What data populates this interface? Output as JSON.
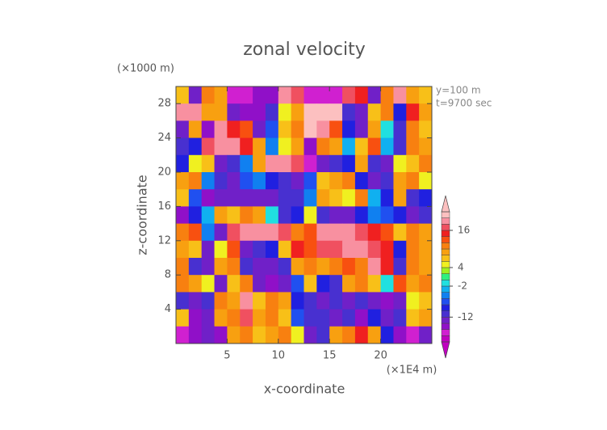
{
  "chart_data": {
    "type": "heatmap",
    "title": "zonal velocity",
    "x_label": "x-coordinate",
    "y_label": "z-coordinate",
    "x_unit": "(×1E4 m)",
    "y_unit": "(×1000 m)",
    "annotations": [
      "y=100 m",
      "t=9700 sec"
    ],
    "xlim": [
      0,
      25
    ],
    "ylim": [
      0,
      30
    ],
    "xticks": [
      5,
      10,
      15,
      20
    ],
    "yticks": [
      4,
      8,
      12,
      16,
      20,
      24,
      28
    ],
    "x": [
      0.625,
      1.875,
      3.125,
      4.375,
      5.625,
      6.875,
      8.125,
      9.375,
      10.625,
      11.875,
      13.125,
      14.375,
      15.625,
      16.875,
      18.125,
      19.375,
      20.625,
      21.875,
      23.125,
      24.375
    ],
    "y": [
      29,
      27,
      25,
      23,
      21,
      19,
      17,
      15,
      13,
      11,
      9,
      7,
      5,
      3,
      1
    ],
    "z": [
      [
        6,
        -14,
        10,
        8,
        -18,
        -18,
        -16,
        -16,
        18,
        16,
        -18,
        -18,
        -18,
        16,
        14,
        -14,
        10,
        18,
        8,
        6
      ],
      [
        18,
        18,
        8,
        8,
        -14,
        -16,
        -16,
        -12,
        4,
        8,
        20,
        20,
        20,
        -12,
        -14,
        6,
        10,
        -10,
        14,
        8
      ],
      [
        -14,
        8,
        -16,
        18,
        14,
        12,
        -14,
        -8,
        6,
        10,
        20,
        18,
        12,
        -10,
        -14,
        8,
        -2,
        -12,
        10,
        6
      ],
      [
        -12,
        -10,
        16,
        18,
        18,
        14,
        8,
        -6,
        4,
        8,
        -16,
        10,
        8,
        -4,
        6,
        12,
        -4,
        -12,
        10,
        8
      ],
      [
        -10,
        4,
        6,
        -14,
        -12,
        -6,
        8,
        18,
        18,
        16,
        -18,
        -14,
        -12,
        -10,
        8,
        -12,
        -14,
        4,
        6,
        10
      ],
      [
        8,
        10,
        -6,
        -12,
        -14,
        -8,
        -6,
        -10,
        -12,
        -14,
        -8,
        6,
        8,
        10,
        -10,
        -14,
        -12,
        8,
        10,
        4
      ],
      [
        6,
        -8,
        -16,
        -14,
        -14,
        -14,
        -14,
        -14,
        -12,
        -12,
        -6,
        8,
        6,
        4,
        10,
        -4,
        -10,
        8,
        -12,
        -10
      ],
      [
        -16,
        -10,
        -4,
        8,
        6,
        10,
        8,
        -2,
        -12,
        -10,
        4,
        -12,
        -14,
        -14,
        -10,
        -6,
        -8,
        -10,
        -14,
        -12
      ],
      [
        10,
        12,
        -6,
        -14,
        16,
        18,
        18,
        18,
        16,
        10,
        12,
        18,
        18,
        18,
        16,
        14,
        12,
        6,
        10,
        8
      ],
      [
        8,
        6,
        -14,
        4,
        12,
        -14,
        -12,
        -10,
        6,
        14,
        12,
        16,
        16,
        18,
        18,
        16,
        14,
        -10,
        10,
        8
      ],
      [
        10,
        -12,
        -14,
        8,
        10,
        -12,
        -14,
        -14,
        -12,
        8,
        10,
        8,
        10,
        12,
        10,
        18,
        14,
        -12,
        10,
        8
      ],
      [
        10,
        8,
        4,
        -14,
        6,
        10,
        -14,
        -16,
        -14,
        -8,
        6,
        -10,
        -12,
        8,
        10,
        6,
        -2,
        12,
        8,
        10
      ],
      [
        -12,
        -14,
        -12,
        10,
        8,
        18,
        6,
        10,
        8,
        -10,
        -12,
        -14,
        -12,
        -14,
        -12,
        -14,
        -16,
        -14,
        4,
        6
      ],
      [
        6,
        -16,
        -14,
        8,
        10,
        16,
        8,
        10,
        6,
        -8,
        -12,
        -12,
        -14,
        -12,
        -16,
        -10,
        -14,
        -12,
        6,
        8
      ],
      [
        -18,
        -16,
        -14,
        -16,
        8,
        10,
        6,
        8,
        10,
        4,
        -14,
        -12,
        8,
        10,
        14,
        8,
        -10,
        -16,
        -18,
        -14
      ]
    ],
    "colorbar": {
      "levels": [
        -20,
        -18,
        -16,
        -14,
        -12,
        -10,
        -8,
        -6,
        -4,
        -2,
        0,
        2,
        4,
        6,
        8,
        10,
        12,
        14,
        16,
        18,
        20,
        22
      ],
      "colors": [
        "#c000c0",
        "#d020d0",
        "#9010c8",
        "#7020c8",
        "#4830d0",
        "#2020e0",
        "#2050f0",
        "#1080f0",
        "#10b0f0",
        "#20e0e0",
        "#30f080",
        "#a0f020",
        "#f0f020",
        "#f8c018",
        "#f8a010",
        "#f88010",
        "#f85010",
        "#f02020",
        "#f05060",
        "#f890a0",
        "#fcc0c0"
      ],
      "ticks": [
        16,
        4,
        -2,
        -12
      ]
    }
  }
}
